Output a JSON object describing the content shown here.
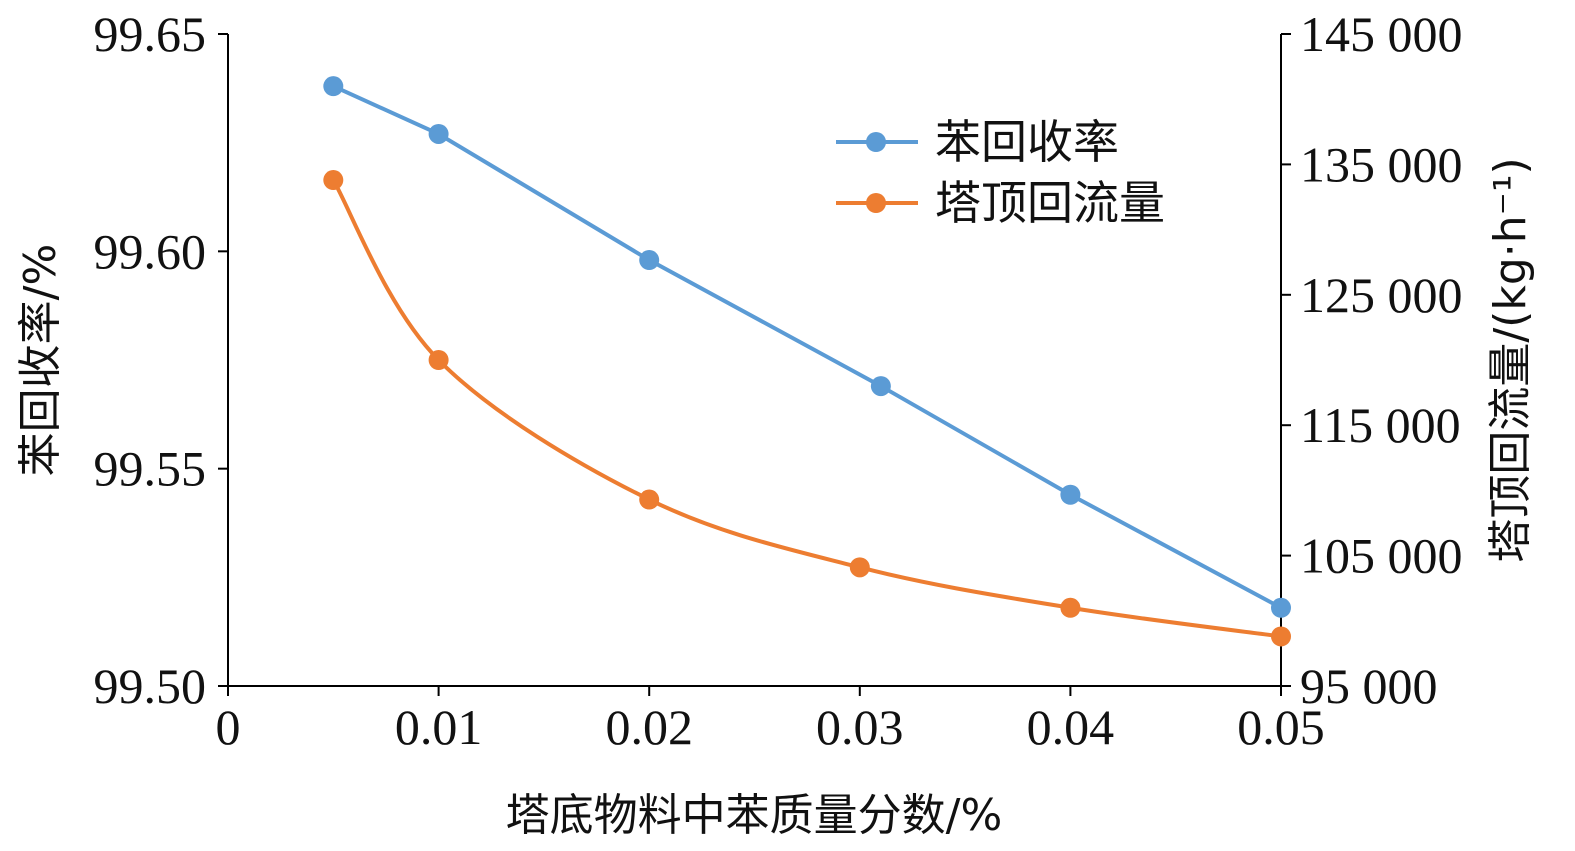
{
  "chart_data": {
    "type": "line",
    "xlabel": "塔底物料中苯质量分数/%",
    "ylabel_left": "苯回收率/%",
    "ylabel_right": "塔顶回流量/(kg·h⁻¹)",
    "xlim": [
      0,
      0.05
    ],
    "ylim_left": [
      99.5,
      99.65
    ],
    "ylim_right": [
      95000,
      145000
    ],
    "x_ticks": [
      "0",
      "0.01",
      "0.02",
      "0.03",
      "0.04",
      "0.05"
    ],
    "y_left_ticks": [
      "99.50",
      "99.55",
      "99.60",
      "99.65"
    ],
    "y_right_ticks": [
      "95 000",
      "105 000",
      "115 000",
      "125 000",
      "135 000",
      "145 000"
    ],
    "grid": false,
    "legend_position": "top-right",
    "series": [
      {
        "name": "苯回收率",
        "axis": "left",
        "color": "#5b9bd5",
        "smooth": false,
        "x": [
          0.005,
          0.01,
          0.02,
          0.031,
          0.04,
          0.05
        ],
        "y": [
          99.638,
          99.627,
          99.598,
          99.569,
          99.544,
          99.518
        ]
      },
      {
        "name": "塔顶回流量",
        "axis": "right",
        "color": "#ed7d31",
        "smooth": true,
        "x": [
          0.005,
          0.01,
          0.02,
          0.03,
          0.04,
          0.05
        ],
        "y": [
          133800,
          120000,
          109300,
          104100,
          101000,
          98800
        ]
      }
    ]
  }
}
